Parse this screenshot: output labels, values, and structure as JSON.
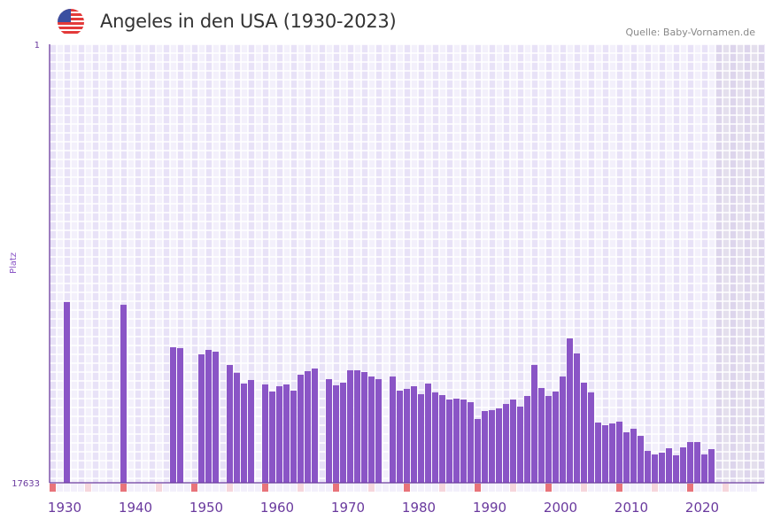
{
  "header": {
    "title": "Angeles in den USA (1930-2023)",
    "source": "Quelle: Baby-Vornamen.de",
    "flag_icon": "us-flag-icon"
  },
  "chart_data": {
    "type": "bar",
    "title": "Angeles in den USA (1930-2023)",
    "xlabel": "",
    "ylabel": "Platz",
    "y_scale": "log-rank-inverted",
    "ylim": [
      17633,
      1
    ],
    "y_tick_labels": [
      "1",
      "17633"
    ],
    "x_tick_labels": [
      "1930",
      "1940",
      "1950",
      "1960",
      "1970",
      "1980",
      "1990",
      "2000",
      "2010",
      "2020"
    ],
    "xlim": [
      1928,
      2028
    ],
    "projection_start_year": 2022,
    "colors": {
      "bar": "#8a55c6",
      "axis": "#6a3a9e",
      "decade_mark": "#e8737a",
      "half_decade_mark": "#f6d6dc",
      "projection": "#e4dfed"
    },
    "series": [
      {
        "name": "Angeles",
        "start_year": 1930,
        "values": [
          313,
          null,
          null,
          null,
          null,
          null,
          null,
          null,
          333,
          null,
          null,
          null,
          null,
          null,
          null,
          859,
          876,
          null,
          null,
          1006,
          911,
          948,
          null,
          1275,
          1514,
          1929,
          1783,
          null,
          1968,
          2305,
          2048,
          1968,
          2259,
          1584,
          1464,
          1380,
          null,
          1748,
          2007,
          1892,
          1435,
          1435,
          1493,
          1649,
          1748,
          null,
          1649,
          2259,
          2172,
          2048,
          2446,
          1929,
          2350,
          2495,
          2754,
          2700,
          2754,
          2922,
          4253,
          3561,
          3491,
          3354,
          3041,
          2754,
          3226,
          2545,
          1275,
          2130,
          2545,
          2305,
          1649,
          705,
          986,
          1892,
          2350,
          4603,
          4884,
          4696,
          4511,
          5720,
          5284,
          6195,
          8664,
          9377,
          9010,
          8163,
          9560,
          8006,
          7110,
          7110,
          9377,
          8327
        ]
      }
    ]
  }
}
